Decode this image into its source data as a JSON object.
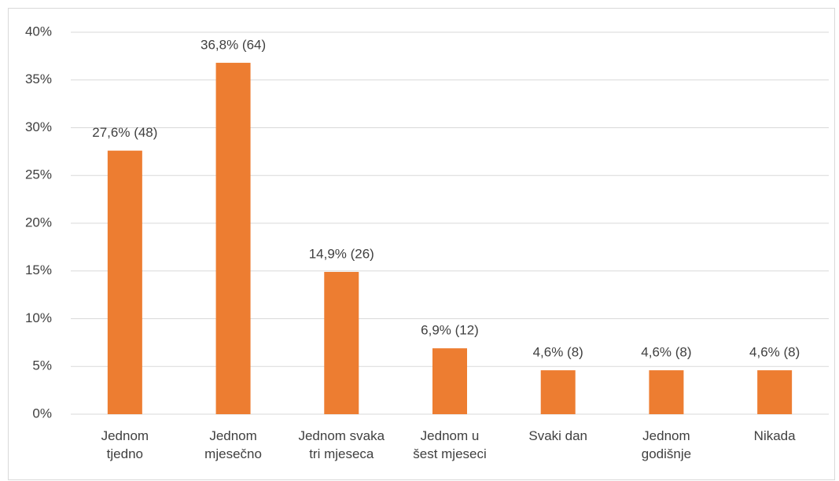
{
  "chart_data": {
    "type": "bar",
    "categories": [
      "Jednom\ntjedno",
      "Jednom\nmjesečno",
      "Jednom svaka\ntri mjeseca",
      "Jednom u\nšest mjeseci",
      "Svaki dan",
      "Jednom\ngodišnje",
      "Nikada"
    ],
    "values": [
      27.6,
      36.8,
      14.9,
      6.9,
      4.6,
      4.6,
      4.6
    ],
    "value_labels": [
      "27,6% (48)",
      "36,8% (64)",
      "14,9% (26)",
      "6,9% (12)",
      "4,6% (8)",
      "4,6% (8)",
      "4,6% (8)"
    ],
    "color": "#ed7d31",
    "ylim": [
      0,
      40
    ],
    "yticks": [
      {
        "value": 0,
        "label": "0%"
      },
      {
        "value": 5,
        "label": "5%"
      },
      {
        "value": 10,
        "label": "10%"
      },
      {
        "value": 15,
        "label": "15%"
      },
      {
        "value": 20,
        "label": "20%"
      },
      {
        "value": 25,
        "label": "25%"
      },
      {
        "value": 30,
        "label": "30%"
      },
      {
        "value": 35,
        "label": "35%"
      },
      {
        "value": 40,
        "label": "40%"
      }
    ],
    "grid": true
  }
}
